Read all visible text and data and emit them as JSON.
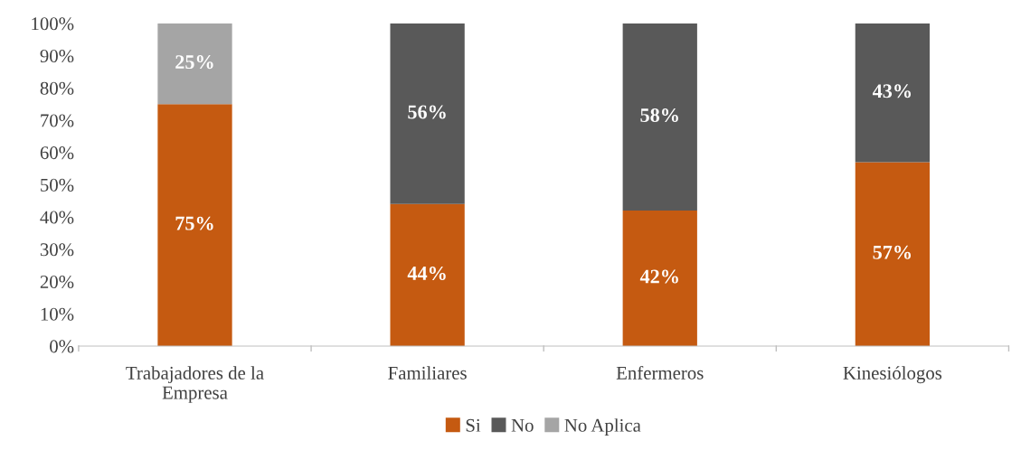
{
  "chart_data": {
    "type": "bar",
    "stacked": true,
    "categories": [
      "Trabajadores de la\nEmpresa",
      "Familiares",
      "Enfermeros",
      "Kinesiólogos"
    ],
    "series": [
      {
        "name": "Si",
        "color": "#c55a11",
        "values": [
          75,
          44,
          42,
          57
        ],
        "value_labels": [
          "75%",
          "44%",
          "42%",
          "57%"
        ]
      },
      {
        "name": "No",
        "color": "#595959",
        "values": [
          null,
          56,
          58,
          43
        ],
        "value_labels": [
          null,
          "56%",
          "58%",
          "43%"
        ]
      },
      {
        "name": "No Aplica",
        "color": "#a5a5a5",
        "values": [
          25,
          null,
          null,
          null
        ],
        "value_labels": [
          "25%",
          null,
          null,
          null
        ]
      }
    ],
    "ylim": [
      0,
      100
    ],
    "yticks": [
      {
        "value": 0,
        "label": "0%"
      },
      {
        "value": 10,
        "label": "10%"
      },
      {
        "value": 20,
        "label": "20%"
      },
      {
        "value": 30,
        "label": "30%"
      },
      {
        "value": 40,
        "label": "40%"
      },
      {
        "value": 50,
        "label": "50%"
      },
      {
        "value": 60,
        "label": "60%"
      },
      {
        "value": 70,
        "label": "70%"
      },
      {
        "value": 80,
        "label": "80%"
      },
      {
        "value": 90,
        "label": "90%"
      },
      {
        "value": 100,
        "label": "100%"
      }
    ],
    "grid": false,
    "legend": "bottom"
  }
}
